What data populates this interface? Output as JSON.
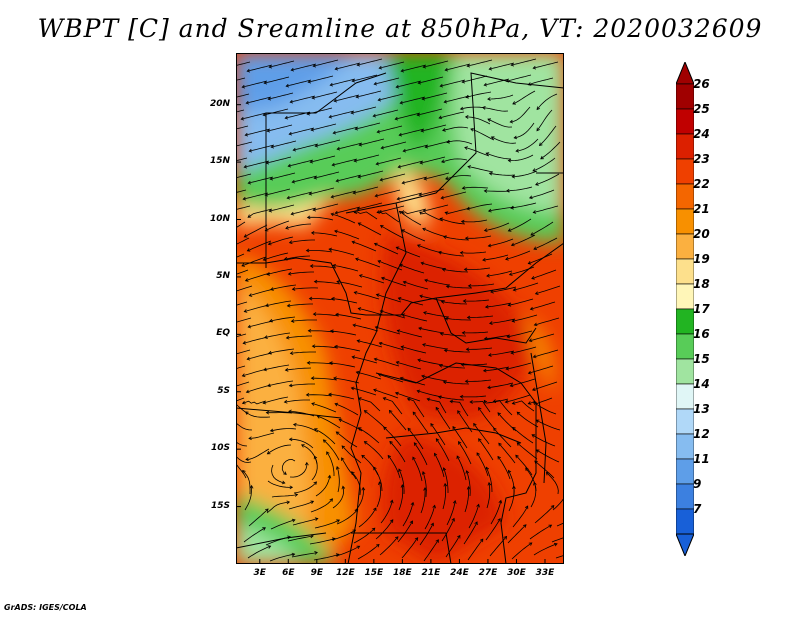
{
  "title": "WBPT [C] and Sreamline at 850hPa, VT: 2020032609",
  "credit": "GrADS: IGES/COLA",
  "map": {
    "lat_labels": [
      "20N",
      "15N",
      "10N",
      "5N",
      "EQ",
      "5S",
      "10S",
      "15S"
    ],
    "lat_values": [
      20,
      15,
      10,
      5,
      0,
      -5,
      -10,
      -15
    ],
    "lon_labels": [
      "3E",
      "6E",
      "9E",
      "12E",
      "15E",
      "18E",
      "21E",
      "24E",
      "27E",
      "30E",
      "33E"
    ],
    "lon_values": [
      3,
      6,
      9,
      12,
      15,
      18,
      21,
      24,
      27,
      30,
      33
    ],
    "lat_range": [
      -20,
      24.5
    ],
    "lon_range": [
      0.5,
      35
    ]
  },
  "colorbar": {
    "labels": [
      "26",
      "25",
      "24",
      "23",
      "22",
      "21",
      "20",
      "19",
      "18",
      "17",
      "16",
      "15",
      "14",
      "13",
      "12",
      "11",
      "9",
      "7"
    ],
    "colors": [
      "#a00000",
      "#c00000",
      "#dc2000",
      "#ef4000",
      "#f46600",
      "#f89000",
      "#fbb040",
      "#fde08c",
      "#fff6b8",
      "#22b422",
      "#58cc58",
      "#a0e4a0",
      "#e0f6f6",
      "#b0d8f8",
      "#86bcf0",
      "#5e9ee8",
      "#3c80e0",
      "#1860d8"
    ]
  }
}
